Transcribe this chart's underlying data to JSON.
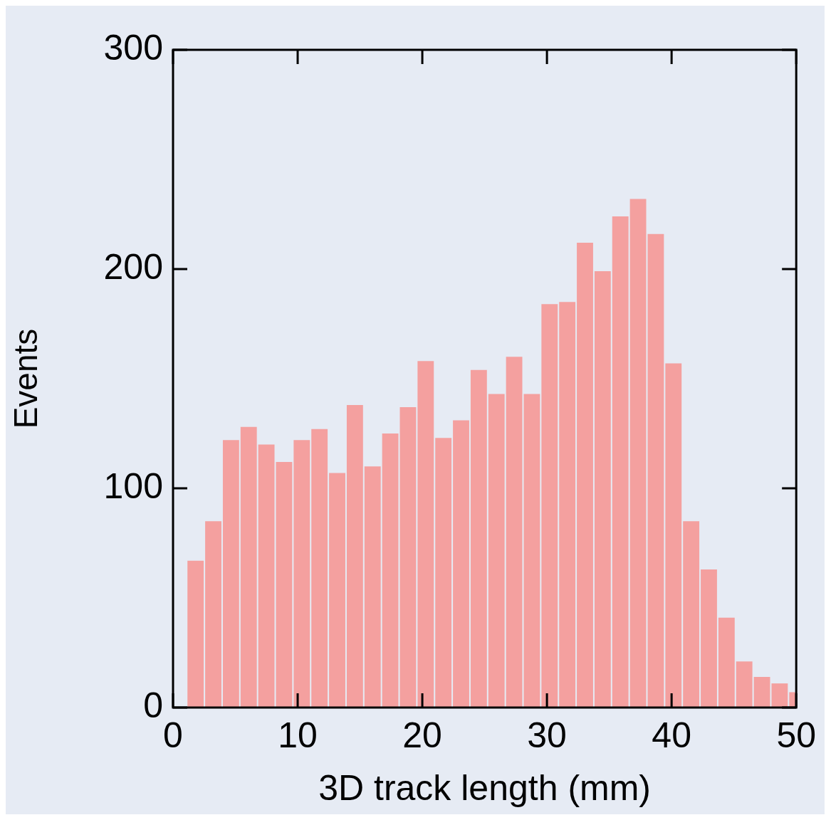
{
  "chart_data": {
    "type": "histogram",
    "xlabel": "3D track length (mm)",
    "ylabel": "Events",
    "bins": [
      1.1,
      2.52,
      3.94,
      5.36,
      6.78,
      8.2,
      9.62,
      11.04,
      12.46,
      13.88,
      15.3,
      16.72,
      18.14,
      19.56,
      20.98,
      22.4,
      23.82,
      25.24,
      26.66,
      28.08,
      29.5,
      30.92,
      32.34,
      33.76,
      35.18,
      36.6,
      38.02,
      39.44,
      40.86,
      42.28,
      43.7,
      45.12,
      46.54,
      47.96,
      49.38,
      50
    ],
    "values": [
      67,
      85,
      122,
      128,
      120,
      112,
      122,
      127,
      107,
      138,
      110,
      125,
      137,
      158,
      123,
      131,
      154,
      143,
      160,
      143,
      184,
      185,
      212,
      199,
      224,
      232,
      216,
      157,
      85,
      63,
      41,
      21,
      14,
      11,
      7
    ],
    "color": "#f4a09f",
    "xlim": [
      0,
      50
    ],
    "xticks": [
      0,
      10,
      20,
      30,
      40,
      50
    ],
    "ylim": [
      0,
      300
    ],
    "yticks": [
      0,
      100,
      200,
      300
    ],
    "grid": false
  }
}
